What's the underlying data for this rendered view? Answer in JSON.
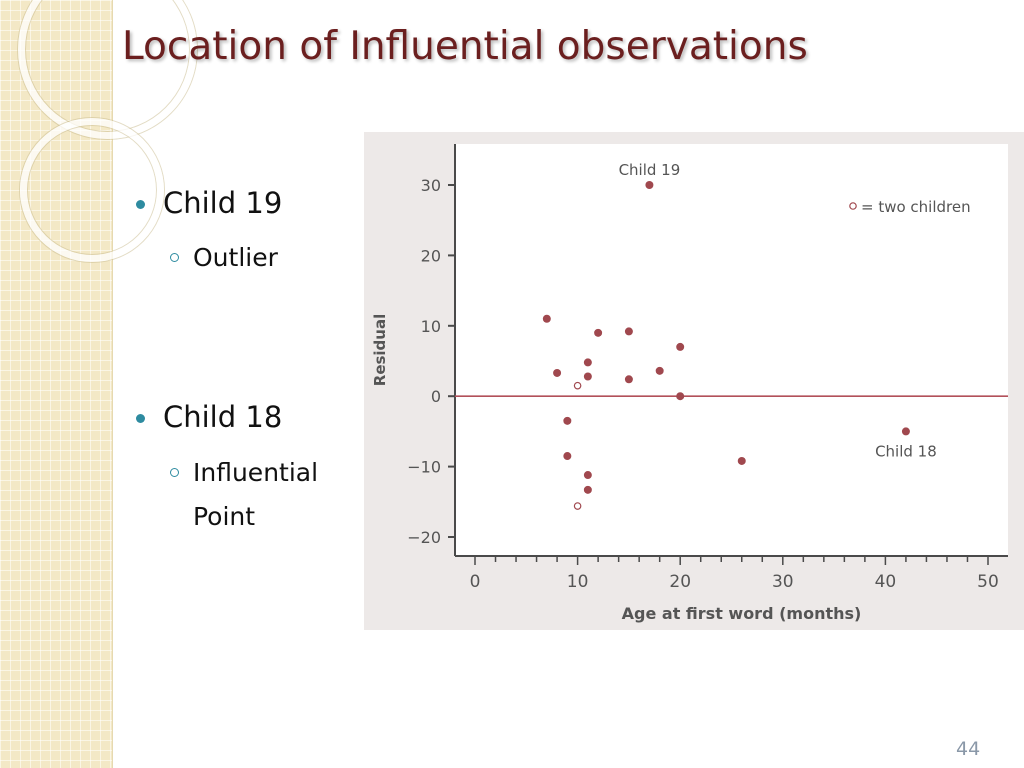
{
  "slide": {
    "title": "Location of Influential observations",
    "page_number": "44",
    "bullets": [
      {
        "text": "Child 19",
        "sub": [
          "Outlier"
        ]
      },
      {
        "text": "Child 18",
        "sub": [
          "Influential",
          "Point"
        ]
      }
    ]
  },
  "colors": {
    "title": "#6b1f1f",
    "bullet": "#2e8ba0",
    "sidebar": "#f3e8c6",
    "point": "#a0484e",
    "reference_line": "#b2505a"
  },
  "chart_data": {
    "type": "scatter",
    "xlabel": "Age at first word (months)",
    "ylabel": "Residual",
    "xlim": [
      0,
      50
    ],
    "ylim": [
      -20,
      30
    ],
    "xticks": [
      0,
      10,
      20,
      30,
      40,
      50
    ],
    "yticks": [
      30,
      20,
      10,
      0,
      -10,
      -20
    ],
    "ytick_labels": [
      "30",
      "20",
      "10",
      "0",
      "−10",
      "−20"
    ],
    "grid": false,
    "reference_line_y": 0,
    "legend": {
      "text": "= two children",
      "marker": "open-circle",
      "placement": "top-right"
    },
    "series": [
      {
        "marker": "filled-circle",
        "points": [
          [
            17,
            30
          ],
          [
            7,
            11
          ],
          [
            8,
            3.3
          ],
          [
            9,
            -3.5
          ],
          [
            9,
            -8.5
          ],
          [
            11,
            4.8
          ],
          [
            11,
            2.8
          ],
          [
            11,
            -11.2
          ],
          [
            11,
            -13.3
          ],
          [
            12,
            9
          ],
          [
            15,
            9.2
          ],
          [
            15,
            2.4
          ],
          [
            18,
            3.6
          ],
          [
            20,
            7
          ],
          [
            20,
            0
          ],
          [
            26,
            -9.2
          ],
          [
            42,
            -5
          ]
        ]
      },
      {
        "marker": "open-circle",
        "points": [
          [
            10,
            1.5
          ],
          [
            10,
            -15.6
          ]
        ]
      }
    ],
    "annotations": [
      {
        "text": "Child 19",
        "x": 17,
        "y": 30
      },
      {
        "text": "Child 18",
        "x": 42,
        "y": -5
      }
    ]
  }
}
